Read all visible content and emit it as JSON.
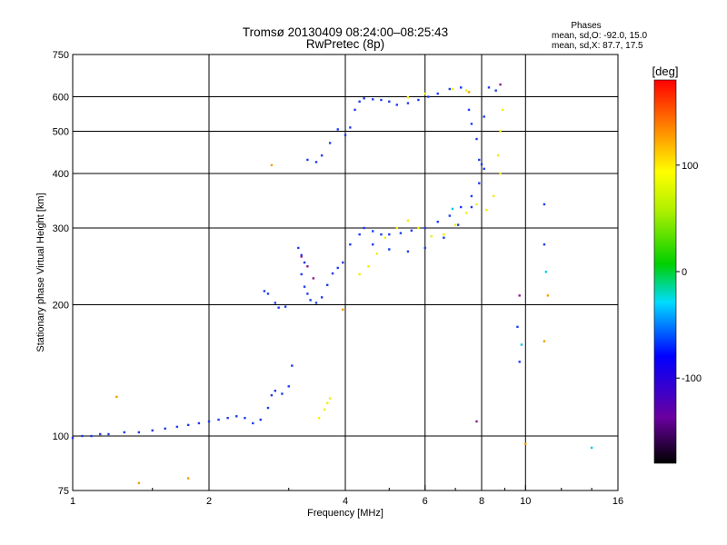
{
  "header": {
    "title_line1": "Tromsø 20130409 08:24:00–08:25:43",
    "title_line2": "RwPretec (8p)",
    "phases_title": "Phases",
    "phases_o": "mean, sd,O: -92.0, 15.0",
    "phases_x": "mean, sd,X:  87.7, 17.5"
  },
  "chart_data": {
    "type": "scatter",
    "title": "Tromsø 20130409 08:24:00–08:25:43",
    "subtitle": "RwPretec (8p)",
    "xlabel": "Frequency [MHz]",
    "ylabel": "Stationary phase Virtual Height [km]",
    "x_scale": "log",
    "y_scale": "log",
    "xlim": [
      1,
      16
    ],
    "ylim": [
      75,
      750
    ],
    "x_ticks": [
      1,
      2,
      4,
      6,
      8,
      10,
      16
    ],
    "x_tick_labels": [
      "1",
      "2",
      "4",
      "6",
      "8",
      "10",
      "16"
    ],
    "y_ticks": [
      75,
      100,
      200,
      300,
      400,
      500,
      600,
      750
    ],
    "y_tick_labels": [
      "75",
      "100",
      "200",
      "300",
      "400",
      "500",
      "600",
      "750"
    ],
    "grid": true,
    "colorbar": {
      "label": "[deg]",
      "range": [
        -180,
        180
      ],
      "ticks": [
        100,
        0,
        -100
      ],
      "tick_labels": [
        "100",
        "0",
        "-100"
      ]
    },
    "series": [
      {
        "color": "#1c3cf0",
        "phase_deg": -92,
        "points": [
          [
            1.0,
            99
          ],
          [
            1.05,
            100
          ],
          [
            1.1,
            100
          ],
          [
            1.15,
            101
          ],
          [
            1.2,
            101
          ],
          [
            1.3,
            102
          ],
          [
            1.4,
            102
          ],
          [
            1.5,
            103
          ],
          [
            1.6,
            104
          ],
          [
            1.7,
            105
          ],
          [
            1.8,
            106
          ],
          [
            1.9,
            107
          ],
          [
            2.0,
            108
          ],
          [
            2.1,
            109
          ],
          [
            2.2,
            110
          ],
          [
            2.3,
            111
          ],
          [
            2.4,
            110
          ],
          [
            2.5,
            107
          ],
          [
            2.6,
            109
          ],
          [
            2.7,
            116
          ],
          [
            2.75,
            124
          ],
          [
            2.8,
            127
          ],
          [
            2.9,
            125
          ],
          [
            3.0,
            130
          ],
          [
            3.05,
            145
          ],
          [
            2.65,
            215
          ],
          [
            2.7,
            212
          ],
          [
            2.8,
            202
          ],
          [
            2.85,
            197
          ],
          [
            2.95,
            198
          ],
          [
            3.15,
            270
          ],
          [
            3.2,
            260
          ],
          [
            3.25,
            250
          ],
          [
            3.2,
            235
          ],
          [
            3.25,
            220
          ],
          [
            3.3,
            212
          ],
          [
            3.35,
            205
          ],
          [
            3.45,
            202
          ],
          [
            3.55,
            208
          ],
          [
            3.65,
            222
          ],
          [
            3.75,
            236
          ],
          [
            3.85,
            243
          ],
          [
            3.95,
            250
          ],
          [
            3.3,
            430
          ],
          [
            3.45,
            425
          ],
          [
            3.55,
            440
          ],
          [
            3.7,
            470
          ],
          [
            3.85,
            505
          ],
          [
            4.0,
            490
          ],
          [
            4.1,
            510
          ],
          [
            4.2,
            560
          ],
          [
            4.3,
            585
          ],
          [
            4.4,
            595
          ],
          [
            4.6,
            592
          ],
          [
            4.8,
            590
          ],
          [
            5.0,
            585
          ],
          [
            5.2,
            575
          ],
          [
            5.5,
            580
          ],
          [
            5.8,
            590
          ],
          [
            6.1,
            600
          ],
          [
            6.4,
            610
          ],
          [
            6.8,
            625
          ],
          [
            7.2,
            630
          ],
          [
            7.5,
            560
          ],
          [
            7.6,
            520
          ],
          [
            7.8,
            480
          ],
          [
            7.9,
            430
          ],
          [
            8.0,
            420
          ],
          [
            8.1,
            540
          ],
          [
            8.3,
            630
          ],
          [
            8.6,
            620
          ],
          [
            4.1,
            275
          ],
          [
            4.3,
            290
          ],
          [
            4.4,
            300
          ],
          [
            4.6,
            295
          ],
          [
            4.8,
            290
          ],
          [
            5.0,
            290
          ],
          [
            5.3,
            292
          ],
          [
            5.6,
            296
          ],
          [
            6.0,
            300
          ],
          [
            6.4,
            310
          ],
          [
            6.8,
            320
          ],
          [
            7.2,
            335
          ],
          [
            7.6,
            355
          ],
          [
            7.9,
            380
          ],
          [
            8.1,
            410
          ],
          [
            4.6,
            275
          ],
          [
            5.0,
            268
          ],
          [
            5.5,
            265
          ],
          [
            6.0,
            270
          ],
          [
            6.6,
            285
          ],
          [
            7.1,
            305
          ],
          [
            7.6,
            335
          ],
          [
            9.6,
            178
          ],
          [
            9.7,
            148
          ],
          [
            11,
            340
          ],
          [
            11,
            275
          ]
        ]
      },
      {
        "color": "#f0f000",
        "phase_deg": 88,
        "points": [
          [
            4.3,
            235
          ],
          [
            4.5,
            245
          ],
          [
            4.7,
            262
          ],
          [
            4.9,
            285
          ],
          [
            5.2,
            300
          ],
          [
            5.5,
            312
          ],
          [
            5.8,
            300
          ],
          [
            6.2,
            287
          ],
          [
            6.6,
            290
          ],
          [
            7.0,
            305
          ],
          [
            7.4,
            325
          ],
          [
            7.8,
            340
          ],
          [
            8.2,
            330
          ],
          [
            8.5,
            355
          ],
          [
            8.8,
            400
          ],
          [
            8.7,
            440
          ],
          [
            8.8,
            500
          ],
          [
            8.9,
            560
          ],
          [
            5.5,
            598
          ],
          [
            6.0,
            610
          ],
          [
            6.9,
            625
          ],
          [
            7.4,
            620
          ],
          [
            3.5,
            110
          ],
          [
            3.6,
            115
          ],
          [
            3.7,
            122
          ],
          [
            3.65,
            119
          ]
        ]
      },
      {
        "color": "#8b1a8b",
        "phase_deg": -160,
        "points": [
          [
            3.2,
            258
          ],
          [
            3.3,
            245
          ],
          [
            3.4,
            230
          ],
          [
            7.8,
            108
          ],
          [
            8.8,
            640
          ],
          [
            9.7,
            210
          ]
        ]
      },
      {
        "color": "#f0a000",
        "phase_deg": 120,
        "points": [
          [
            2.75,
            418
          ],
          [
            1.25,
            123
          ],
          [
            1.4,
            78
          ],
          [
            1.8,
            80
          ],
          [
            3.95,
            195
          ],
          [
            11,
            165
          ],
          [
            11.2,
            210
          ],
          [
            10,
            96
          ],
          [
            7.5,
            615
          ]
        ]
      },
      {
        "color": "#00c8e6",
        "phase_deg": -30,
        "points": [
          [
            6.9,
            332
          ],
          [
            11.1,
            238
          ],
          [
            14,
            94
          ],
          [
            9.8,
            162
          ]
        ]
      }
    ]
  }
}
